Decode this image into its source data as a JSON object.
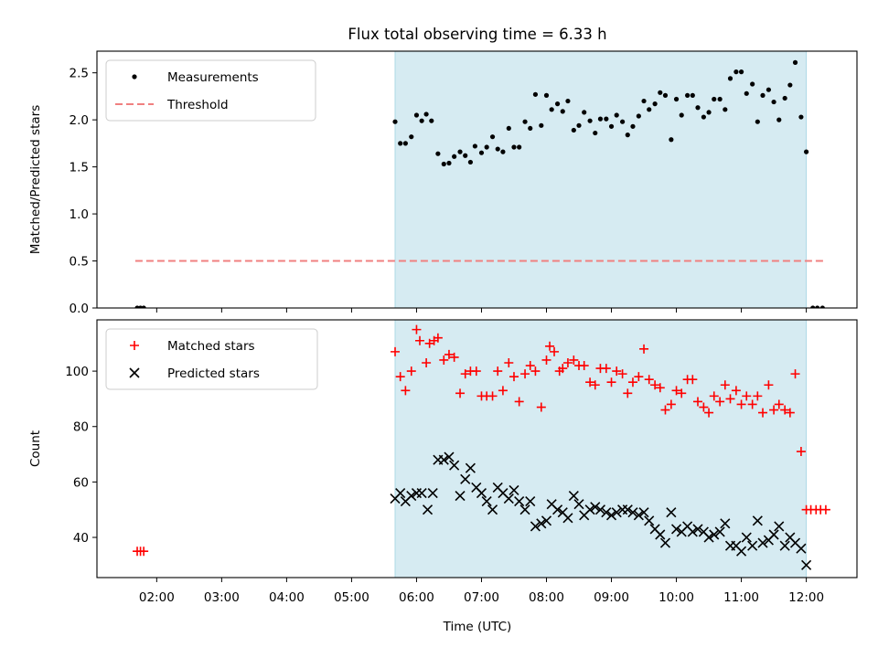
{
  "figure": {
    "title": "Flux total observing time = 6.33 h",
    "xlabel": "Time (UTC)",
    "shade_color": "#add8e6",
    "x_ticks": [
      {
        "h": 2,
        "label": "02:00"
      },
      {
        "h": 3,
        "label": "03:00"
      },
      {
        "h": 4,
        "label": "04:00"
      },
      {
        "h": 5,
        "label": "05:00"
      },
      {
        "h": 6,
        "label": "06:00"
      },
      {
        "h": 7,
        "label": "07:00"
      },
      {
        "h": 8,
        "label": "08:00"
      },
      {
        "h": 9,
        "label": "09:00"
      },
      {
        "h": 10,
        "label": "10:00"
      },
      {
        "h": 11,
        "label": "11:00"
      },
      {
        "h": 12,
        "label": "12:00"
      }
    ]
  },
  "chart_data": [
    {
      "type": "scatter",
      "title": "Flux total observing time = 6.33 h",
      "ylabel": "Matched/Predicted stars",
      "xlim": [
        1.08,
        12.78
      ],
      "ylim": [
        0,
        2.73
      ],
      "y_ticks": [
        "0.0",
        "0.5",
        "1.0",
        "1.5",
        "2.0",
        "2.5"
      ],
      "shaded_x_range": [
        5.67,
        12.0
      ],
      "legend": {
        "position": "upper-left",
        "entries": [
          "Measurements",
          "Threshold"
        ]
      },
      "threshold": {
        "name": "Threshold",
        "value": 0.5,
        "x_range": [
          1.67,
          12.27
        ],
        "color": "#f08080"
      },
      "series": [
        {
          "name": "Measurements",
          "color": "#000000",
          "points": [
            [
              1.7,
              0
            ],
            [
              1.75,
              0
            ],
            [
              1.8,
              0
            ],
            [
              5.67,
              1.98
            ],
            [
              5.75,
              1.75
            ],
            [
              5.83,
              1.75
            ],
            [
              5.92,
              1.82
            ],
            [
              6.0,
              2.05
            ],
            [
              6.08,
              1.99
            ],
            [
              6.15,
              2.06
            ],
            [
              6.23,
              1.99
            ],
            [
              6.33,
              1.64
            ],
            [
              6.42,
              1.53
            ],
            [
              6.5,
              1.54
            ],
            [
              6.58,
              1.61
            ],
            [
              6.67,
              1.66
            ],
            [
              6.75,
              1.62
            ],
            [
              6.83,
              1.55
            ],
            [
              6.9,
              1.72
            ],
            [
              7.0,
              1.65
            ],
            [
              7.08,
              1.71
            ],
            [
              7.17,
              1.82
            ],
            [
              7.25,
              1.69
            ],
            [
              7.33,
              1.66
            ],
            [
              7.42,
              1.91
            ],
            [
              7.5,
              1.71
            ],
            [
              7.58,
              1.71
            ],
            [
              7.67,
              1.98
            ],
            [
              7.75,
              1.91
            ],
            [
              7.83,
              2.27
            ],
            [
              7.92,
              1.94
            ],
            [
              8.0,
              2.26
            ],
            [
              8.08,
              2.11
            ],
            [
              8.17,
              2.17
            ],
            [
              8.25,
              2.09
            ],
            [
              8.33,
              2.2
            ],
            [
              8.42,
              1.89
            ],
            [
              8.5,
              1.94
            ],
            [
              8.58,
              2.08
            ],
            [
              8.67,
              1.99
            ],
            [
              8.75,
              1.86
            ],
            [
              8.83,
              2.01
            ],
            [
              8.92,
              2.01
            ],
            [
              9.0,
              1.93
            ],
            [
              9.08,
              2.05
            ],
            [
              9.17,
              1.98
            ],
            [
              9.25,
              1.84
            ],
            [
              9.33,
              1.93
            ],
            [
              9.42,
              2.04
            ],
            [
              9.5,
              2.2
            ],
            [
              9.58,
              2.11
            ],
            [
              9.67,
              2.17
            ],
            [
              9.75,
              2.29
            ],
            [
              9.83,
              2.26
            ],
            [
              9.92,
              1.79
            ],
            [
              10.0,
              2.22
            ],
            [
              10.08,
              2.05
            ],
            [
              10.17,
              2.26
            ],
            [
              10.25,
              2.26
            ],
            [
              10.33,
              2.13
            ],
            [
              10.42,
              2.03
            ],
            [
              10.5,
              2.08
            ],
            [
              10.58,
              2.22
            ],
            [
              10.67,
              2.22
            ],
            [
              10.75,
              2.11
            ],
            [
              10.83,
              2.44
            ],
            [
              10.92,
              2.51
            ],
            [
              11.0,
              2.51
            ],
            [
              11.08,
              2.28
            ],
            [
              11.17,
              2.38
            ],
            [
              11.25,
              1.98
            ],
            [
              11.33,
              2.26
            ],
            [
              11.42,
              2.32
            ],
            [
              11.5,
              2.19
            ],
            [
              11.58,
              2.0
            ],
            [
              11.67,
              2.23
            ],
            [
              11.75,
              2.37
            ],
            [
              11.83,
              2.61
            ],
            [
              11.92,
              2.03
            ],
            [
              12.0,
              1.66
            ],
            [
              12.1,
              0
            ],
            [
              12.17,
              0
            ],
            [
              12.25,
              0
            ]
          ]
        }
      ]
    },
    {
      "type": "scatter",
      "ylabel": "Count",
      "xlabel": "Time (UTC)",
      "xlim": [
        1.08,
        12.78
      ],
      "ylim": [
        25.5,
        118.5
      ],
      "y_ticks": [
        "40",
        "60",
        "80",
        "100"
      ],
      "shaded_x_range": [
        5.67,
        12.0
      ],
      "legend": {
        "position": "upper-left",
        "entries": [
          "Matched stars",
          "Predicted stars"
        ]
      },
      "series": [
        {
          "name": "Matched stars",
          "color": "#ff0000",
          "marker": "+",
          "points": [
            [
              1.7,
              35
            ],
            [
              1.75,
              35
            ],
            [
              1.8,
              35
            ],
            [
              5.67,
              107
            ],
            [
              5.75,
              98
            ],
            [
              5.83,
              93
            ],
            [
              5.92,
              100
            ],
            [
              6.0,
              115
            ],
            [
              6.05,
              111
            ],
            [
              6.15,
              103
            ],
            [
              6.2,
              110
            ],
            [
              6.27,
              111
            ],
            [
              6.33,
              112
            ],
            [
              6.42,
              104
            ],
            [
              6.5,
              106
            ],
            [
              6.58,
              105
            ],
            [
              6.67,
              92
            ],
            [
              6.75,
              99
            ],
            [
              6.83,
              100
            ],
            [
              6.92,
              100
            ],
            [
              7.0,
              91
            ],
            [
              7.08,
              91
            ],
            [
              7.17,
              91
            ],
            [
              7.25,
              100
            ],
            [
              7.33,
              93
            ],
            [
              7.42,
              103
            ],
            [
              7.5,
              98
            ],
            [
              7.58,
              89
            ],
            [
              7.67,
              99
            ],
            [
              7.75,
              102
            ],
            [
              7.83,
              100
            ],
            [
              7.92,
              87
            ],
            [
              8.0,
              104
            ],
            [
              8.05,
              109
            ],
            [
              8.12,
              107
            ],
            [
              8.2,
              100
            ],
            [
              8.25,
              101
            ],
            [
              8.33,
              103
            ],
            [
              8.42,
              104
            ],
            [
              8.5,
              102
            ],
            [
              8.58,
              102
            ],
            [
              8.67,
              96
            ],
            [
              8.75,
              95
            ],
            [
              8.83,
              101
            ],
            [
              8.92,
              101
            ],
            [
              9.0,
              96
            ],
            [
              9.08,
              100
            ],
            [
              9.17,
              99
            ],
            [
              9.25,
              92
            ],
            [
              9.33,
              96
            ],
            [
              9.42,
              98
            ],
            [
              9.5,
              108
            ],
            [
              9.58,
              97
            ],
            [
              9.67,
              95
            ],
            [
              9.75,
              94
            ],
            [
              9.83,
              86
            ],
            [
              9.92,
              88
            ],
            [
              10.0,
              93
            ],
            [
              10.08,
              92
            ],
            [
              10.17,
              97
            ],
            [
              10.25,
              97
            ],
            [
              10.33,
              89
            ],
            [
              10.42,
              87
            ],
            [
              10.5,
              85
            ],
            [
              10.58,
              91
            ],
            [
              10.67,
              89
            ],
            [
              10.75,
              95
            ],
            [
              10.83,
              90
            ],
            [
              10.92,
              93
            ],
            [
              11.0,
              88
            ],
            [
              11.08,
              91
            ],
            [
              11.17,
              88
            ],
            [
              11.25,
              91
            ],
            [
              11.33,
              85
            ],
            [
              11.42,
              95
            ],
            [
              11.5,
              86
            ],
            [
              11.58,
              88
            ],
            [
              11.67,
              86
            ],
            [
              11.75,
              85
            ],
            [
              11.83,
              99
            ],
            [
              11.92,
              71
            ],
            [
              12.0,
              50
            ],
            [
              12.07,
              50
            ],
            [
              12.15,
              50
            ],
            [
              12.22,
              50
            ],
            [
              12.3,
              50
            ]
          ]
        },
        {
          "name": "Predicted stars",
          "color": "#000000",
          "marker": "x",
          "points": [
            [
              5.67,
              54
            ],
            [
              5.75,
              56
            ],
            [
              5.83,
              53
            ],
            [
              5.92,
              55
            ],
            [
              6.0,
              56
            ],
            [
              6.08,
              56
            ],
            [
              6.17,
              50
            ],
            [
              6.25,
              56
            ],
            [
              6.33,
              68
            ],
            [
              6.42,
              68
            ],
            [
              6.5,
              69
            ],
            [
              6.58,
              66
            ],
            [
              6.67,
              55
            ],
            [
              6.75,
              61
            ],
            [
              6.83,
              65
            ],
            [
              6.92,
              58
            ],
            [
              7.0,
              56
            ],
            [
              7.08,
              53
            ],
            [
              7.17,
              50
            ],
            [
              7.25,
              58
            ],
            [
              7.33,
              56
            ],
            [
              7.42,
              54
            ],
            [
              7.5,
              57
            ],
            [
              7.58,
              53
            ],
            [
              7.67,
              50
            ],
            [
              7.75,
              53
            ],
            [
              7.83,
              44
            ],
            [
              7.92,
              45
            ],
            [
              8.0,
              46
            ],
            [
              8.08,
              52
            ],
            [
              8.17,
              50
            ],
            [
              8.25,
              49
            ],
            [
              8.33,
              47
            ],
            [
              8.42,
              55
            ],
            [
              8.5,
              52
            ],
            [
              8.58,
              48
            ],
            [
              8.67,
              50
            ],
            [
              8.75,
              51
            ],
            [
              8.83,
              50
            ],
            [
              8.92,
              49
            ],
            [
              9.0,
              48
            ],
            [
              9.08,
              49
            ],
            [
              9.17,
              50
            ],
            [
              9.25,
              50
            ],
            [
              9.33,
              49
            ],
            [
              9.42,
              48
            ],
            [
              9.5,
              49
            ],
            [
              9.58,
              46
            ],
            [
              9.67,
              43
            ],
            [
              9.75,
              41
            ],
            [
              9.83,
              38
            ],
            [
              9.92,
              49
            ],
            [
              10.0,
              43
            ],
            [
              10.08,
              42
            ],
            [
              10.17,
              44
            ],
            [
              10.25,
              42
            ],
            [
              10.33,
              43
            ],
            [
              10.42,
              42
            ],
            [
              10.5,
              40
            ],
            [
              10.58,
              41
            ],
            [
              10.67,
              42
            ],
            [
              10.75,
              45
            ],
            [
              10.83,
              37
            ],
            [
              10.92,
              37
            ],
            [
              11.0,
              35
            ],
            [
              11.08,
              40
            ],
            [
              11.17,
              37
            ],
            [
              11.25,
              46
            ],
            [
              11.33,
              38
            ],
            [
              11.42,
              39
            ],
            [
              11.5,
              41
            ],
            [
              11.58,
              44
            ],
            [
              11.67,
              37
            ],
            [
              11.75,
              40
            ],
            [
              11.83,
              38
            ],
            [
              11.92,
              36
            ],
            [
              12.0,
              30
            ]
          ]
        }
      ]
    }
  ]
}
